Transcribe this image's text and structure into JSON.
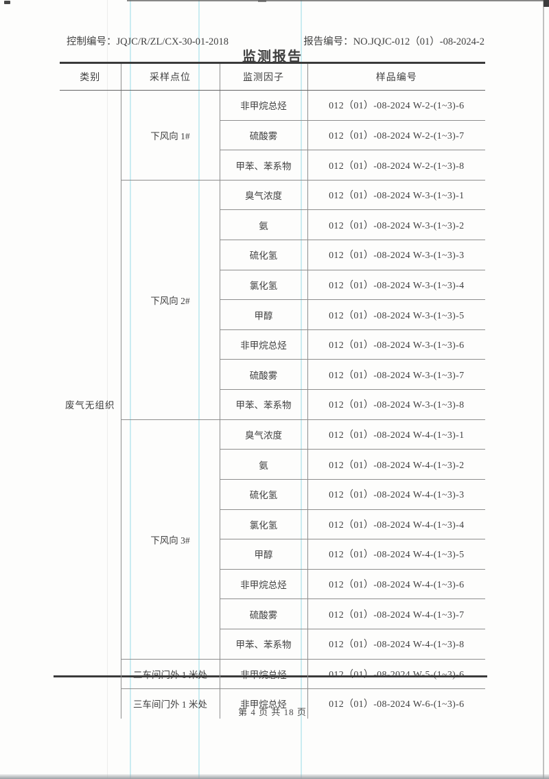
{
  "header": {
    "control_label": "控制编号：",
    "control_value": "JQJC/R/ZL/CX-30-01-2018",
    "report_label": "报告编号：",
    "report_value": "NO.JQJC-012（01）-08-2024-2",
    "title": "监测报告"
  },
  "table": {
    "columns": [
      "类别",
      "采样点位",
      "监测因子",
      "样品编号"
    ],
    "category": "废气无组织",
    "groups": [
      {
        "point": "下风向 1#",
        "rows": [
          {
            "factor": "非甲烷总烃",
            "sample": "012（01）-08-2024 W-2-(1~3)-6"
          },
          {
            "factor": "硫酸雾",
            "sample": "012（01）-08-2024 W-2-(1~3)-7"
          },
          {
            "factor": "甲苯、苯系物",
            "sample": "012（01）-08-2024 W-2-(1~3)-8"
          }
        ]
      },
      {
        "point": "下风向 2#",
        "rows": [
          {
            "factor": "臭气浓度",
            "sample": "012（01）-08-2024 W-3-(1~3)-1"
          },
          {
            "factor": "氨",
            "sample": "012（01）-08-2024 W-3-(1~3)-2"
          },
          {
            "factor": "硫化氢",
            "sample": "012（01）-08-2024 W-3-(1~3)-3"
          },
          {
            "factor": "氯化氢",
            "sample": "012（01）-08-2024 W-3-(1~3)-4"
          },
          {
            "factor": "甲醇",
            "sample": "012（01）-08-2024 W-3-(1~3)-5"
          },
          {
            "factor": "非甲烷总烃",
            "sample": "012（01）-08-2024 W-3-(1~3)-6"
          },
          {
            "factor": "硫酸雾",
            "sample": "012（01）-08-2024 W-3-(1~3)-7"
          },
          {
            "factor": "甲苯、苯系物",
            "sample": "012（01）-08-2024 W-3-(1~3)-8"
          }
        ]
      },
      {
        "point": "下风向 3#",
        "rows": [
          {
            "factor": "臭气浓度",
            "sample": "012（01）-08-2024 W-4-(1~3)-1"
          },
          {
            "factor": "氨",
            "sample": "012（01）-08-2024 W-4-(1~3)-2"
          },
          {
            "factor": "硫化氢",
            "sample": "012（01）-08-2024 W-4-(1~3)-3"
          },
          {
            "factor": "氯化氢",
            "sample": "012（01）-08-2024 W-4-(1~3)-4"
          },
          {
            "factor": "甲醇",
            "sample": "012（01）-08-2024 W-4-(1~3)-5"
          },
          {
            "factor": "非甲烷总烃",
            "sample": "012（01）-08-2024 W-4-(1~3)-6"
          },
          {
            "factor": "硫酸雾",
            "sample": "012（01）-08-2024 W-4-(1~3)-7"
          },
          {
            "factor": "甲苯、苯系物",
            "sample": "012（01）-08-2024 W-4-(1~3)-8"
          }
        ]
      },
      {
        "point": "二车间门外 1 米处",
        "rows": [
          {
            "factor": "非甲烷总烃",
            "sample": "012（01）-08-2024 W-5-(1~3)-6"
          }
        ]
      },
      {
        "point": "三车间门外 1 米处",
        "rows": [
          {
            "factor": "非甲烷总烃",
            "sample": "012（01）-08-2024 W-6-(1~3)-6"
          }
        ]
      }
    ]
  },
  "footer": {
    "page_text": "第 4 页 共 18 页"
  },
  "colors": {
    "text": "#3f3f3f",
    "grid_line": "#8d8d8d",
    "thick_rule": "#3a3a3a",
    "scan_stripe": "#7dd2e0"
  }
}
